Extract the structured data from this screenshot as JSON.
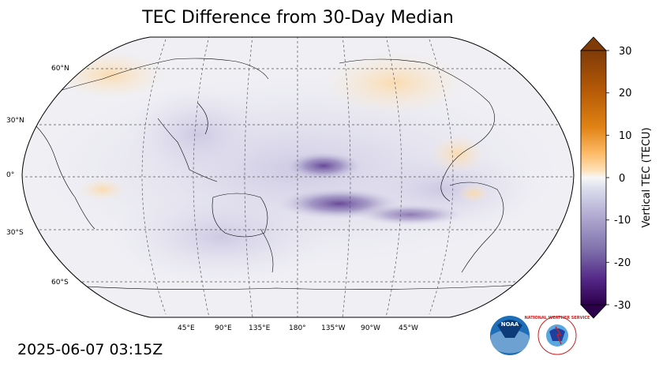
{
  "title": "TEC Difference from 30-Day Median",
  "timestamp": "2025-06-07 03:15Z",
  "map": {
    "projection": "Robinson",
    "central_longitude": 180,
    "lat_labels": [
      "60°N",
      "30°N",
      "0°",
      "30°S",
      "60°S"
    ],
    "lon_labels": [
      "45°E",
      "90°E",
      "135°E",
      "180°",
      "135°W",
      "90°W",
      "45°W"
    ],
    "gridlines": "dashed"
  },
  "colorbar": {
    "label": "Vertical TEC (TECU)",
    "ticks": [
      "30",
      "20",
      "10",
      "0",
      "-10",
      "-20",
      "-30"
    ],
    "min": -30,
    "max": 30,
    "extend": "both",
    "colormap": "PuOr_r",
    "color_high": "#7f3b08",
    "color_mid": "#f7f7f7",
    "color_low": "#2d004b"
  },
  "logos": {
    "noaa": {
      "text": "NOAA",
      "color": "#1f6fb8"
    },
    "nws": {
      "text": "NATIONAL WEATHER SERVICE",
      "color": "#cc1f1f"
    }
  }
}
